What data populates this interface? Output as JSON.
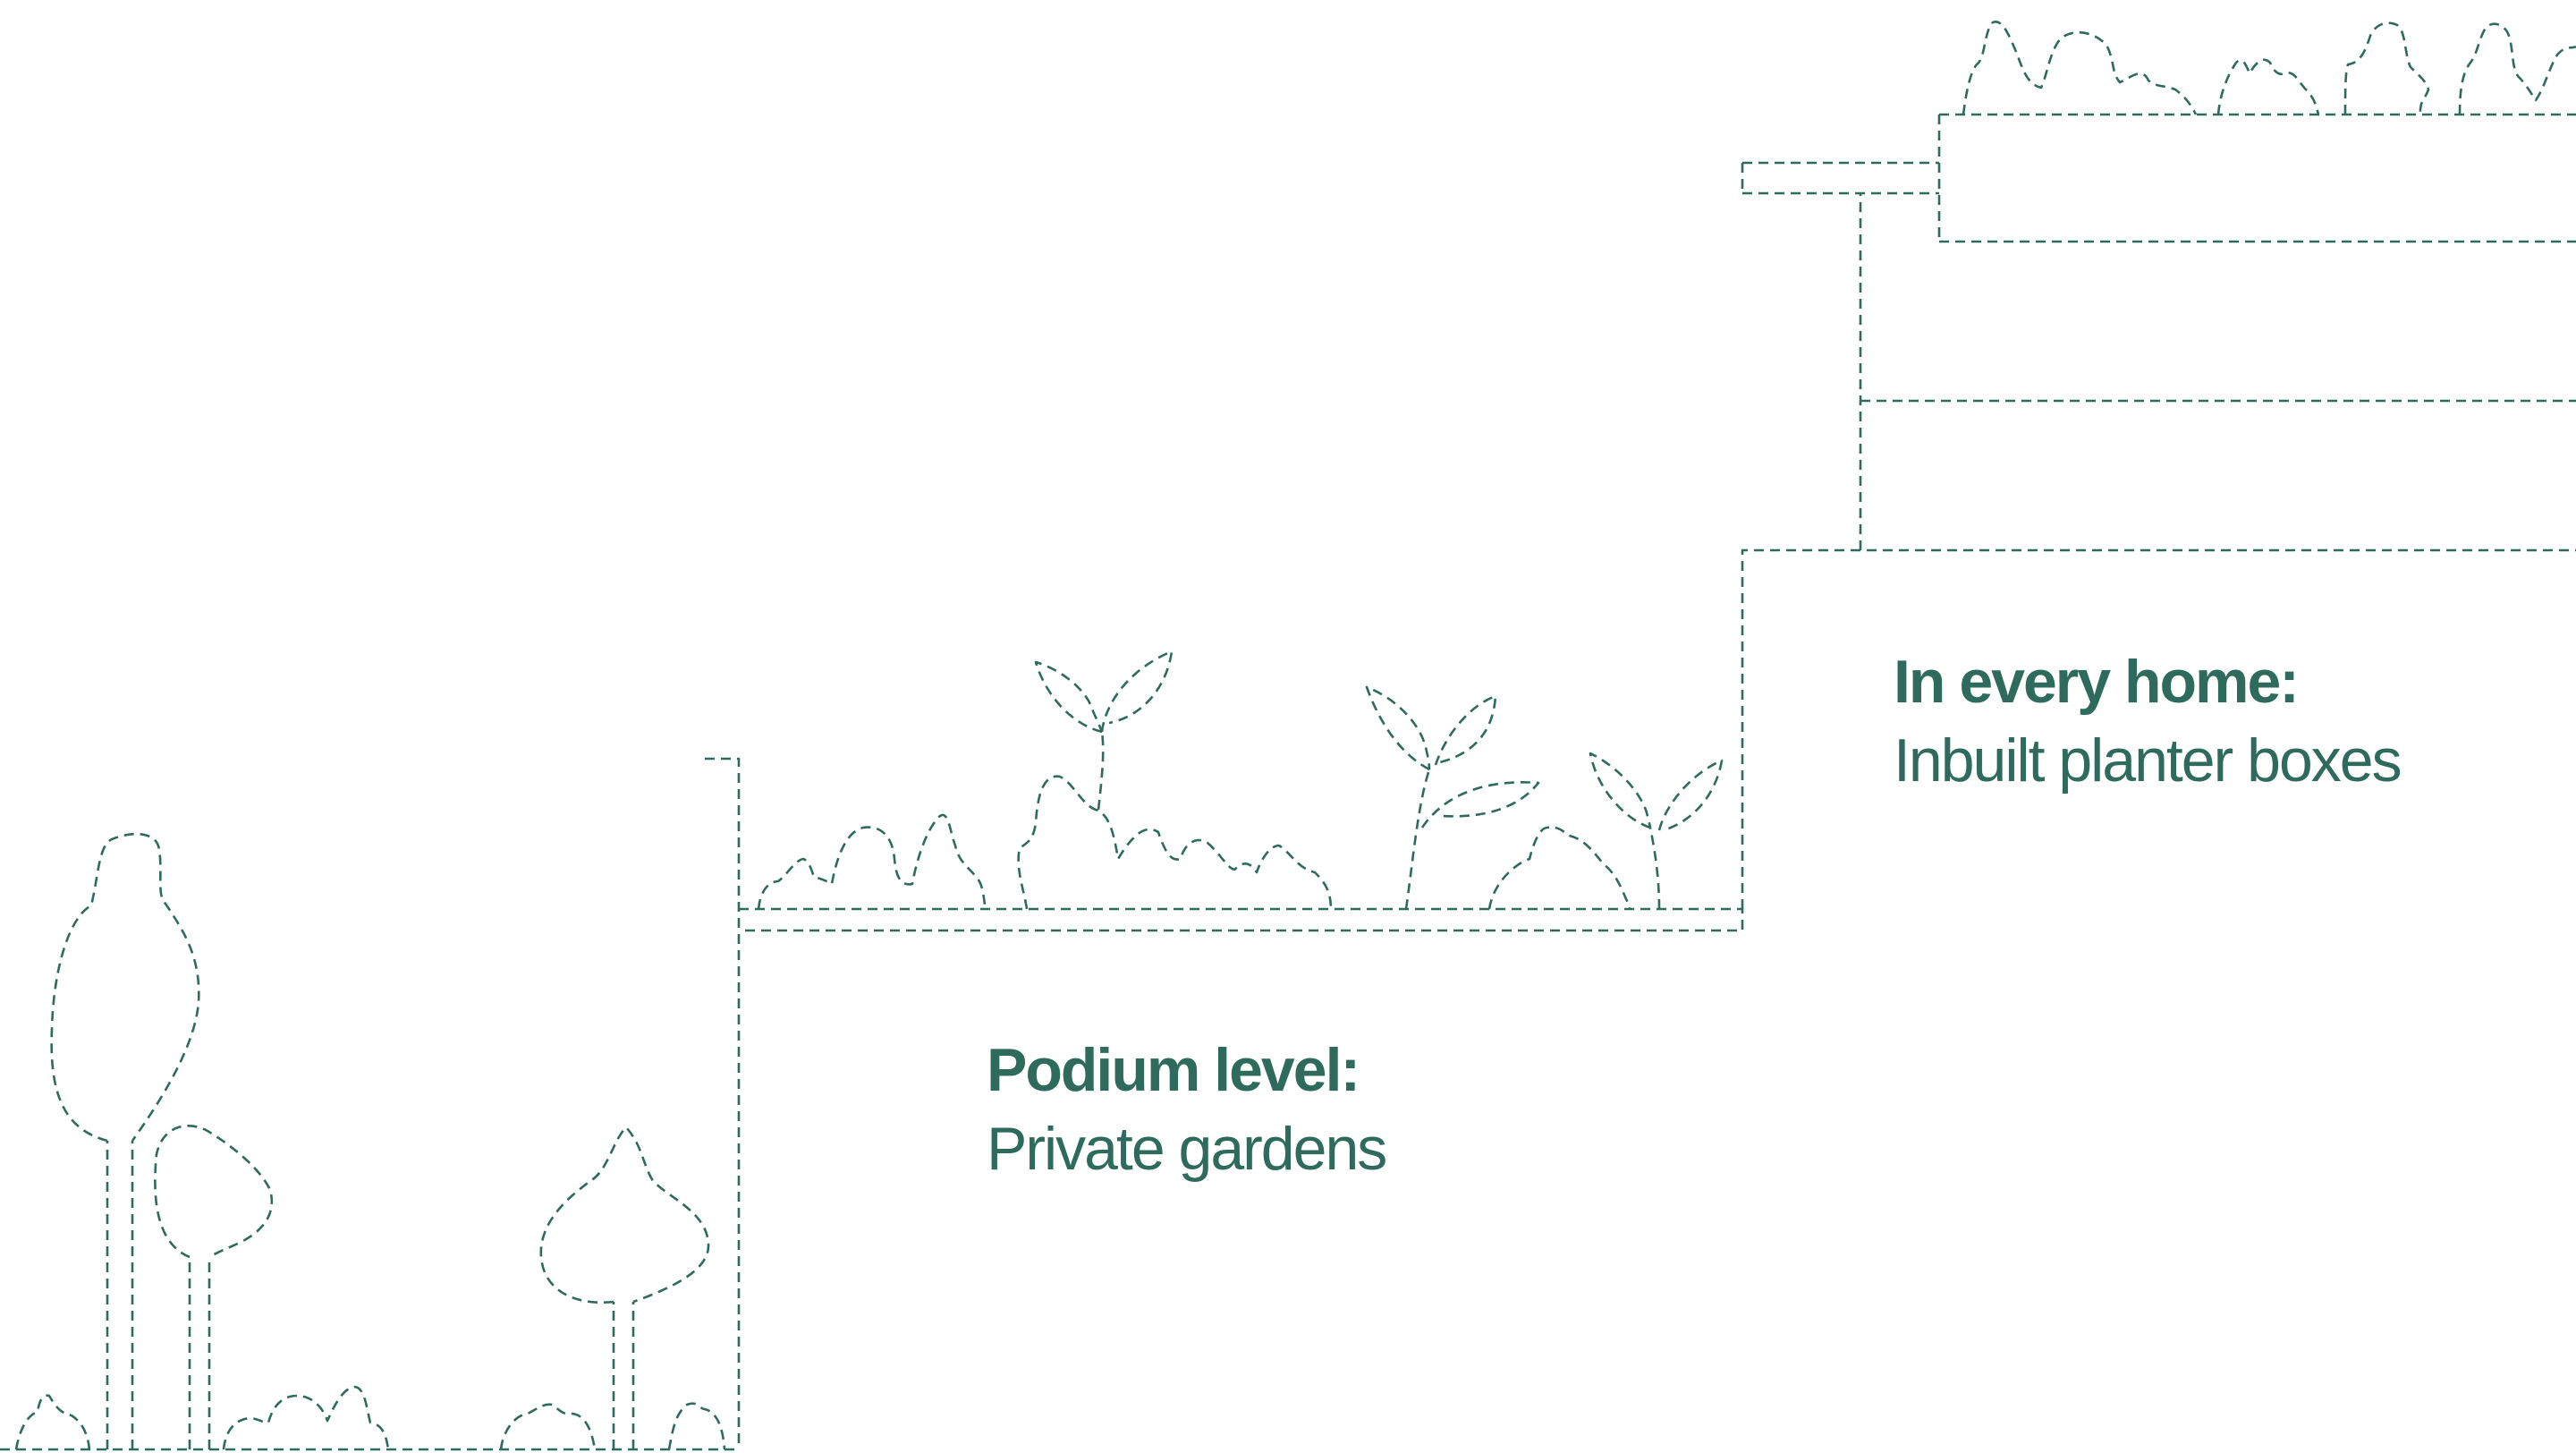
{
  "colors": {
    "line": "#2f6b5d",
    "text": "#2f6b5d",
    "background": "#ffffff"
  },
  "labels": {
    "podium": {
      "title": "Podium level:",
      "subtitle": "Private gardens"
    },
    "home": {
      "title": "In every home:",
      "subtitle": "Inbuilt planter boxes"
    }
  }
}
